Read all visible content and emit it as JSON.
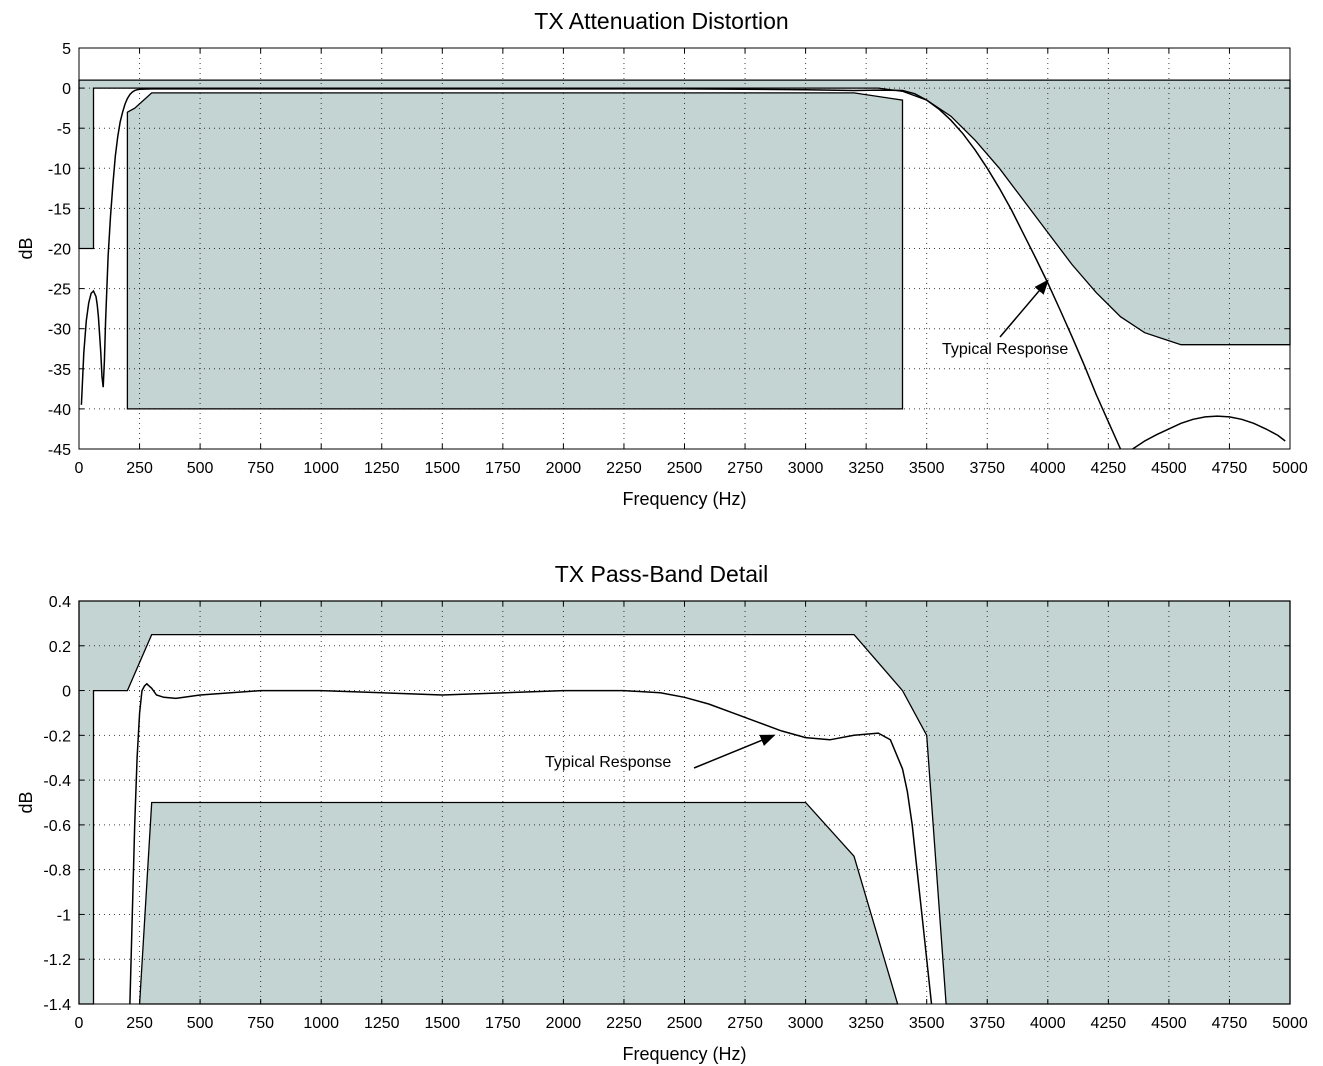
{
  "colors": {
    "mask_fill": "#c4d4d2",
    "line": "#000000",
    "grid": "#000000",
    "background": "#ffffff"
  },
  "chart_data": [
    {
      "type": "line",
      "title": "TX Attenuation Distortion",
      "xlabel": "Frequency  (Hz)",
      "ylabel": "dB",
      "xlim": [
        0,
        5000
      ],
      "ylim": [
        -45,
        5
      ],
      "xticks": [
        0,
        250,
        500,
        750,
        1000,
        1250,
        1500,
        1750,
        2000,
        2250,
        2500,
        2750,
        3000,
        3250,
        3500,
        3750,
        4000,
        4250,
        4500,
        4750,
        5000
      ],
      "yticks": [
        5,
        0,
        -5,
        -10,
        -15,
        -20,
        -25,
        -30,
        -35,
        -40,
        -45
      ],
      "grid": true,
      "mask_regions": [
        {
          "name": "upper mask",
          "x": [
            0,
            5000,
            5000,
            4550,
            4500,
            4400,
            4300,
            4200,
            4100,
            4000,
            3900,
            3800,
            3700,
            3600,
            3500,
            3400,
            3300,
            250,
            60,
            60,
            0
          ],
          "y": [
            1,
            1,
            -32,
            -32,
            -31.5,
            -30.5,
            -28.5,
            -25.5,
            -22,
            -18,
            -14,
            -10,
            -6.5,
            -3.5,
            -1.5,
            -0.4,
            0,
            0,
            0,
            -20,
            -20
          ]
        },
        {
          "name": "lower mask",
          "x": [
            200,
            200,
            230,
            300,
            3200,
            3400,
            3400
          ],
          "y": [
            -40,
            -3,
            -2.5,
            -0.6,
            -0.6,
            -1.5,
            -40
          ]
        }
      ],
      "series": [
        {
          "x": [
            10,
            20,
            30,
            40,
            50,
            60,
            70,
            75,
            80,
            90,
            95,
            100,
            105,
            110,
            120,
            130,
            140,
            150,
            160,
            170,
            180,
            190,
            200,
            210,
            220,
            230,
            240,
            250,
            300,
            350,
            500,
            1000,
            1500,
            2000,
            2500,
            3000,
            3200,
            3300,
            3400,
            3450,
            3500,
            3550,
            3600,
            3650,
            3700,
            3750,
            3800,
            3850,
            3900,
            3950,
            4000,
            4050,
            4100,
            4150,
            4200,
            4250,
            4300
          ],
          "y": [
            -39.5,
            -33,
            -29,
            -26.8,
            -25.6,
            -25.3,
            -26,
            -27,
            -28.5,
            -33,
            -36,
            -37.3,
            -34,
            -29,
            -21,
            -16,
            -12,
            -8.5,
            -6,
            -4.2,
            -3,
            -2,
            -1.3,
            -0.8,
            -0.5,
            -0.3,
            -0.2,
            -0.15,
            -0.1,
            -0.1,
            -0.1,
            -0.1,
            -0.1,
            -0.1,
            -0.1,
            -0.2,
            -0.3,
            -0.25,
            -0.3,
            -0.7,
            -1.5,
            -2.6,
            -4,
            -5.7,
            -7.7,
            -10,
            -12.5,
            -15.2,
            -18.2,
            -21.2,
            -24.3,
            -27.6,
            -31,
            -34.5,
            -38.2,
            -41.6,
            -45
          ]
        },
        {
          "x": [
            4350,
            4400,
            4450,
            4500,
            4550,
            4600,
            4650,
            4700,
            4750,
            4800,
            4850,
            4900,
            4950,
            4980
          ],
          "y": [
            -45,
            -44,
            -43.2,
            -42.5,
            -41.8,
            -41.3,
            -41,
            -40.9,
            -41,
            -41.3,
            -41.8,
            -42.5,
            -43.3,
            -44
          ]
        }
      ],
      "annotations": [
        {
          "text": "Typical Response",
          "arrow_to": [
            4000,
            -24
          ]
        }
      ]
    },
    {
      "type": "line",
      "title": "TX Pass-Band Detail",
      "xlabel": "Frequency  (Hz)",
      "ylabel": "dB",
      "xlim": [
        0,
        5000
      ],
      "ylim": [
        -1.4,
        0.4
      ],
      "xticks": [
        0,
        250,
        500,
        750,
        1000,
        1250,
        1500,
        1750,
        2000,
        2250,
        2500,
        2750,
        3000,
        3250,
        3500,
        3750,
        4000,
        4250,
        4500,
        4750,
        5000
      ],
      "yticks": [
        0.4,
        0.2,
        0,
        -0.2,
        -0.4,
        -0.6,
        -0.8,
        -1,
        -1.2,
        -1.4
      ],
      "ytick_labels": [
        "0.4",
        "0.2",
        "0",
        "-0.2",
        "-0.4",
        "-0.6",
        "-0.8",
        "-1",
        "-1.2",
        "-1.4"
      ],
      "grid": true,
      "mask_regions": [
        {
          "name": "upper mask",
          "x": [
            0,
            5000,
            5000,
            3580,
            3500,
            3400,
            3200,
            300,
            200,
            60,
            60,
            0
          ],
          "y": [
            0.4,
            0.4,
            -1.4,
            -1.4,
            -0.2,
            0,
            0.25,
            0.25,
            0,
            0,
            -1.4,
            -1.4
          ]
        },
        {
          "name": "lower mask",
          "x": [
            250,
            300,
            3000,
            3200,
            3380
          ],
          "y": [
            -1.4,
            -0.5,
            -0.5,
            -0.74,
            -1.4
          ]
        }
      ],
      "series": [
        {
          "x": [
            210,
            220,
            230,
            240,
            250,
            260,
            270,
            280,
            290,
            300,
            320,
            350,
            400,
            500,
            750,
            1000,
            1500,
            2000,
            2250,
            2400,
            2500,
            2600,
            2700,
            2800,
            2900,
            3000,
            3100,
            3200,
            3300,
            3350,
            3400,
            3420,
            3440,
            3460,
            3480,
            3500,
            3520
          ],
          "y": [
            -1.4,
            -1.0,
            -0.6,
            -0.3,
            -0.1,
            0.0,
            0.02,
            0.03,
            0.02,
            0.01,
            -0.02,
            -0.03,
            -0.035,
            -0.02,
            0.0,
            0.0,
            -0.02,
            0.0,
            0.0,
            -0.01,
            -0.03,
            -0.06,
            -0.1,
            -0.14,
            -0.18,
            -0.21,
            -0.22,
            -0.2,
            -0.19,
            -0.22,
            -0.35,
            -0.45,
            -0.6,
            -0.8,
            -1.0,
            -1.2,
            -1.4
          ]
        }
      ],
      "annotations": [
        {
          "text": "Typical Response",
          "arrow_to": [
            2870,
            -0.2
          ]
        }
      ]
    }
  ]
}
